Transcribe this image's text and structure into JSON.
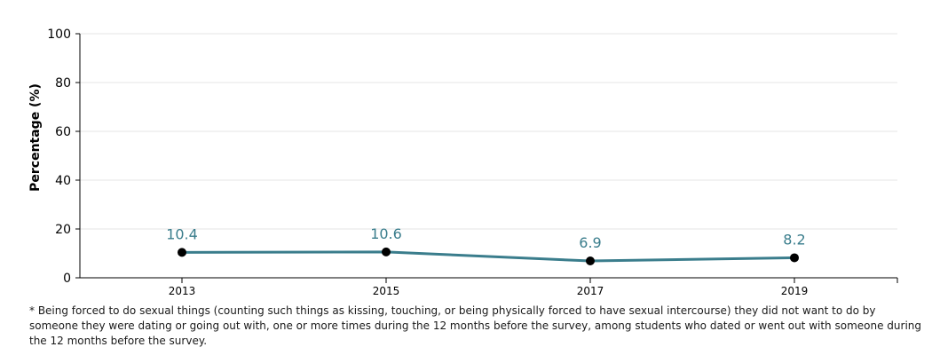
{
  "chart_data": {
    "type": "line",
    "x": [
      "2013",
      "2015",
      "2017",
      "2019"
    ],
    "series": [
      {
        "values": [
          10.4,
          10.6,
          6.9,
          8.2
        ],
        "data_labels": [
          "10.4",
          "10.6",
          "6.9",
          "8.2"
        ],
        "color": "#3a7d8c"
      }
    ],
    "title": "",
    "xlabel": "",
    "ylabel": "Percentage (%)",
    "ylim": [
      0,
      100
    ],
    "yticks": [
      "0",
      "20",
      "40",
      "60",
      "80",
      "100"
    ],
    "grid": true,
    "legend": "none"
  },
  "footnote": "* Being forced to do sexual things (counting such things as kissing, touching, or being physically forced to have sexual intercourse) they did not want to do by someone they were dating or going out with, one or more times during the 12 months before the survey, among students who dated or went out with someone during the 12 months before the survey."
}
